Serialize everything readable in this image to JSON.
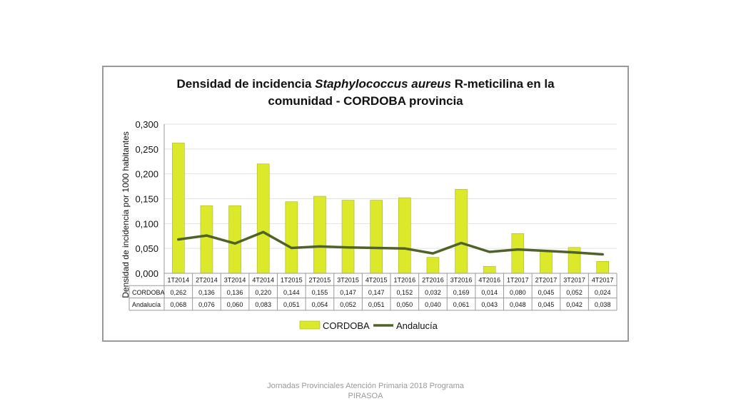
{
  "chart_data": {
    "type": "bar",
    "title_parts": [
      "Densidad de incidencia ",
      "Staphylococcus aureus",
      " R-meticilina en la",
      "comunidad - CORDOBA provincia"
    ],
    "ylabel": "Densidad de incidencia por 1000 habitantes",
    "ylim": [
      0,
      0.3
    ],
    "yticks": [
      "0,000",
      "0,050",
      "0,100",
      "0,150",
      "0,200",
      "0,250",
      "0,300"
    ],
    "grid": true,
    "legend_position": "bottom",
    "categories": [
      "1T2014",
      "2T2014",
      "3T2014",
      "4T2014",
      "1T2015",
      "2T2015",
      "3T2015",
      "4T2015",
      "1T2016",
      "2T2016",
      "3T2016",
      "4T2016",
      "1T2017",
      "2T2017",
      "3T2017",
      "4T2017"
    ],
    "series": [
      {
        "name": "CORDOBA",
        "type": "bar",
        "color": "#dce92a",
        "values": [
          0.262,
          0.136,
          0.136,
          0.22,
          0.144,
          0.155,
          0.147,
          0.147,
          0.152,
          0.032,
          0.169,
          0.014,
          0.08,
          0.045,
          0.052,
          0.024
        ],
        "labels": [
          "0,262",
          "0,136",
          "0,136",
          "0,220",
          "0,144",
          "0,155",
          "0,147",
          "0,147",
          "0,152",
          "0,032",
          "0,169",
          "0,014",
          "0,080",
          "0,045",
          "0,052",
          "0,024"
        ]
      },
      {
        "name": "Andalucía",
        "type": "line",
        "color": "#4f6228",
        "values": [
          0.068,
          0.076,
          0.06,
          0.083,
          0.051,
          0.054,
          0.052,
          0.051,
          0.05,
          0.04,
          0.061,
          0.043,
          0.048,
          0.045,
          0.042,
          0.038
        ],
        "labels": [
          "0,068",
          "0,076",
          "0,060",
          "0,083",
          "0,051",
          "0,054",
          "0,052",
          "0,051",
          "0,050",
          "0,040",
          "0,061",
          "0,043",
          "0,048",
          "0,045",
          "0,042",
          "0,038"
        ]
      }
    ]
  },
  "footer": "Jornadas Provinciales Atención Primaria 2018  Programa PIRASOA"
}
